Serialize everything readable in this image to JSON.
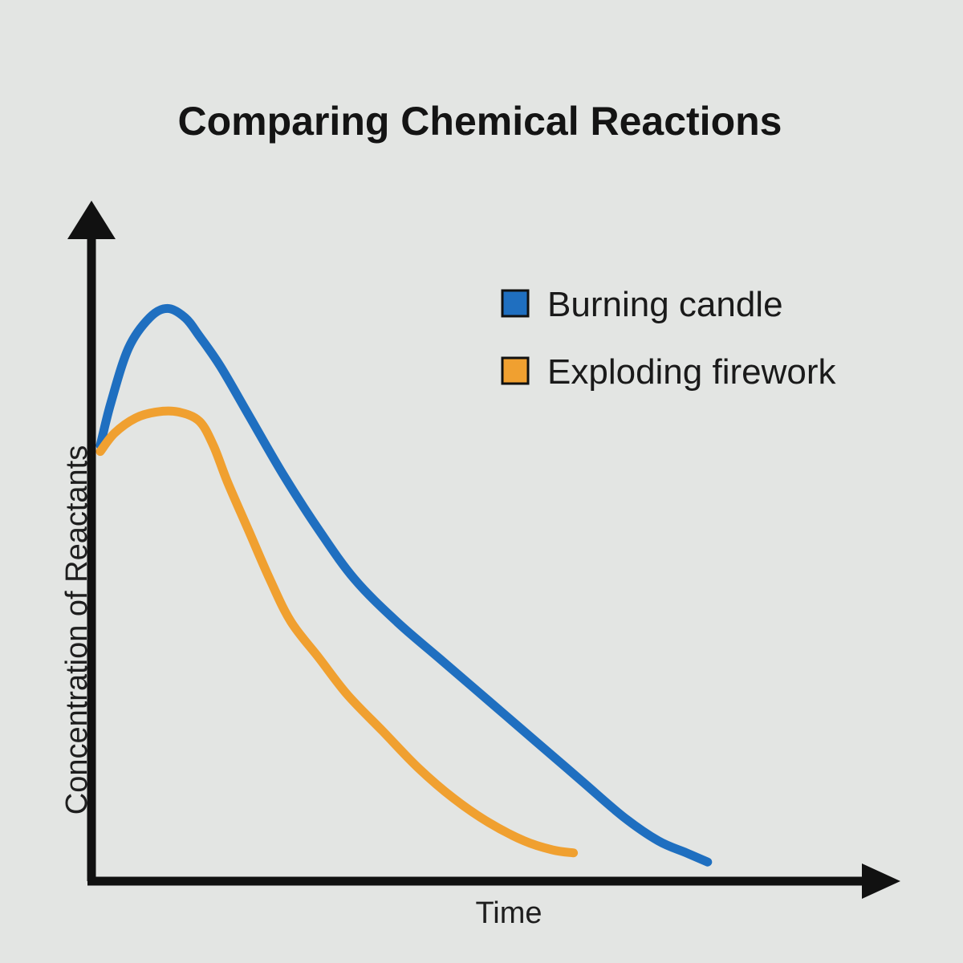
{
  "chart_data": {
    "type": "line",
    "title": "Comparing Chemical Reactions",
    "xlabel": "Time",
    "ylabel": "Concentration of Reactants",
    "axis_ticks": false,
    "grid": false,
    "legend_position": "top-right",
    "xlim": [
      0,
      100
    ],
    "ylim": [
      0,
      100
    ],
    "series": [
      {
        "name": "Burning candle",
        "color": "#1f6fc0",
        "x": [
          0,
          1.5,
          4,
          7,
          9.5,
          12,
          14,
          17,
          21,
          26,
          31,
          36,
          42,
          48,
          55,
          62,
          68,
          74,
          79,
          83,
          86
        ],
        "y": [
          69,
          76,
          85,
          90,
          91.5,
          90,
          87,
          82,
          74,
          64,
          55,
          47,
          40,
          34,
          27,
          20,
          14,
          8,
          4,
          2,
          0.5
        ]
      },
      {
        "name": "Exploding firework",
        "color": "#f0a030",
        "x": [
          0,
          2,
          5,
          8,
          11,
          14,
          16,
          18,
          21,
          24,
          27,
          31,
          35,
          40,
          45,
          50,
          55,
          60,
          64,
          67
        ],
        "y": [
          68,
          71,
          73.5,
          74.5,
          74.5,
          73,
          69,
          63,
          55,
          47,
          40,
          34,
          28,
          22,
          16,
          11,
          7,
          4,
          2.5,
          2
        ]
      }
    ]
  }
}
